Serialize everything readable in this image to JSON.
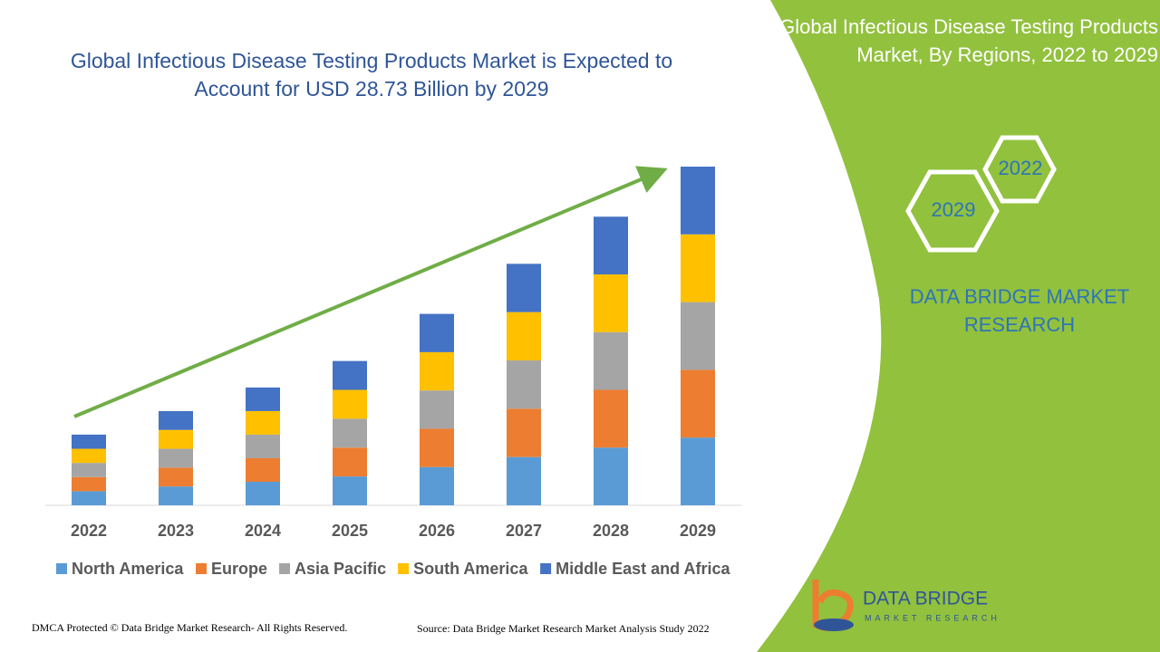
{
  "chart_data": {
    "type": "bar",
    "stacked": true,
    "title": "Global Infectious Disease Testing Products Market is Expected to Account for USD 28.73 Billion by 2029",
    "categories": [
      "2022",
      "2023",
      "2024",
      "2025",
      "2026",
      "2027",
      "2028",
      "2029"
    ],
    "series": [
      {
        "name": "North America",
        "color": "#5b9bd5",
        "values": [
          1.2,
          1.6,
          2.0,
          2.45,
          3.25,
          4.1,
          4.9,
          5.75
        ]
      },
      {
        "name": "Europe",
        "color": "#ed7d31",
        "values": [
          1.2,
          1.6,
          2.0,
          2.45,
          3.25,
          4.1,
          4.9,
          5.75
        ]
      },
      {
        "name": "Asia Pacific",
        "color": "#a5a5a5",
        "values": [
          1.2,
          1.6,
          2.0,
          2.45,
          3.25,
          4.1,
          4.9,
          5.75
        ]
      },
      {
        "name": "South America",
        "color": "#ffc000",
        "values": [
          1.2,
          1.6,
          2.0,
          2.45,
          3.25,
          4.1,
          4.9,
          5.75
        ]
      },
      {
        "name": "Middle East and Africa",
        "color": "#4472c4",
        "values": [
          1.2,
          1.6,
          2.0,
          2.45,
          3.25,
          4.1,
          4.9,
          5.75
        ]
      }
    ]
  },
  "side_panel": {
    "title": "Global Infectious Disease Testing Products Market, By Regions, 2022 to 2029",
    "hexagons": [
      "2022",
      "2029"
    ],
    "brand": "DATA BRIDGE MARKET RESEARCH"
  },
  "logo": {
    "name": "DATA BRIDGE",
    "tagline": "MARKET RESEARCH"
  },
  "footer": {
    "copyright": "DMCA Protected © Data Bridge Market Research- All Rights Reserved.",
    "source": "Source: Data Bridge Market Research Market Analysis Study 2022"
  }
}
